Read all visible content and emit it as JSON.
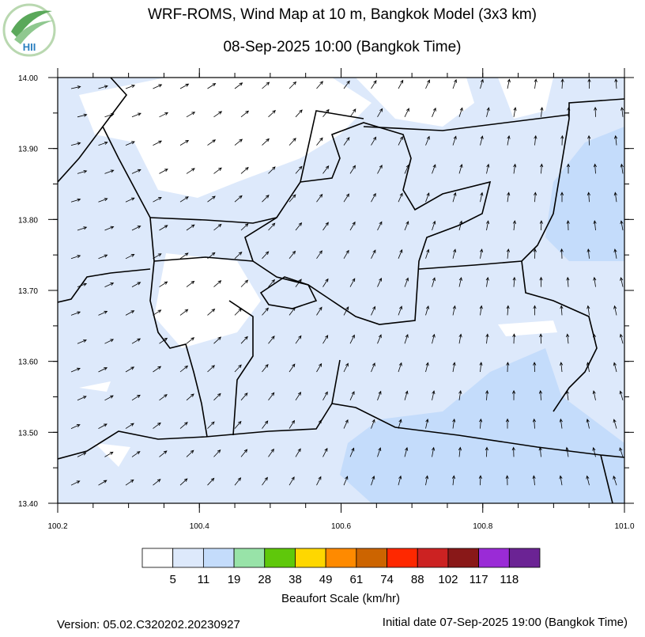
{
  "header": {
    "title": "WRF-ROMS, Wind Map at 10 m, Bangkok Model (3x3 km)",
    "subtitle": "08-Sep-2025 10:00 (Bangkok Time)",
    "logo_text": "HII"
  },
  "map": {
    "xlim": [
      100.2,
      101.0
    ],
    "ylim": [
      13.4,
      14.0
    ],
    "xticks": [
      100.2,
      100.4,
      100.6,
      100.8,
      {
        "value": 101.0,
        "label": "101.0"
      }
    ],
    "yticks": [
      {
        "value": 14.0,
        "label": "14.00"
      },
      {
        "value": 13.9,
        "label": "13.90"
      },
      {
        "value": 13.8,
        "label": "13.80"
      },
      {
        "value": 13.7,
        "label": "13.70"
      },
      {
        "value": 13.6,
        "label": "13.60"
      },
      {
        "value": 13.5,
        "label": "13.50"
      },
      {
        "value": 13.4,
        "label": "13.40"
      }
    ]
  },
  "colorbar": {
    "colors": [
      "#ffffff",
      "#dde9fb",
      "#c4dcfb",
      "#98e3a8",
      "#5fc80b",
      "#fed700",
      "#fe8a00",
      "#cc6400",
      "#fe2800",
      "#cc2222",
      "#891818",
      "#9a2bd6",
      "#6b2394"
    ],
    "labels": [
      5,
      11,
      19,
      28,
      38,
      49,
      61,
      74,
      88,
      102,
      117,
      118
    ],
    "title": "Beaufort Scale (km/hr)"
  },
  "footer": {
    "version": "Version: 05.02.C320202.20230927",
    "initial": "Initial date 07-Sep-2025 19:00 (Bangkok Time)"
  }
}
